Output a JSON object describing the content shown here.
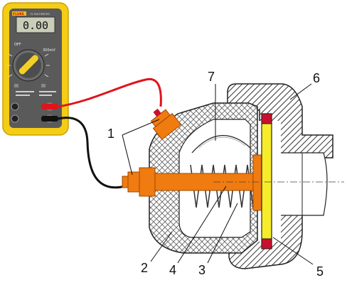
{
  "meter": {
    "display_value": "0.00",
    "brand": "FLUKE",
    "model_text": "75 MULTIMETER",
    "range_label": "300mV"
  },
  "diagram": {
    "callouts": [
      "1",
      "2",
      "3",
      "4",
      "5",
      "6",
      "7"
    ]
  },
  "colors": {
    "meter_body": "#f5cc16",
    "meter_panel": "#5a5a5a",
    "housing_hatch": "#444444",
    "orange_part": "#f07b10",
    "diaphragm": "#f7ec2a",
    "seal_red": "#c8102e",
    "lead_red": "#e0141c",
    "lead_black": "#111111"
  }
}
